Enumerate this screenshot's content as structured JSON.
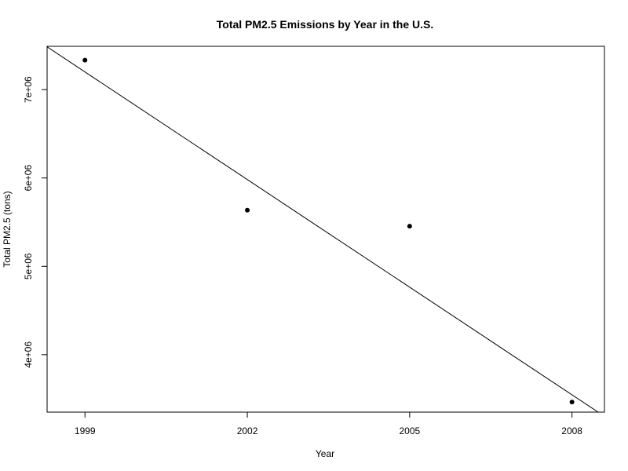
{
  "chart_data": {
    "type": "scatter",
    "title": "Total PM2.5 Emissions by Year in the U.S.",
    "xlabel": "Year",
    "ylabel": "Total PM2.5 (tons)",
    "x": [
      1999,
      2002,
      2005,
      2008
    ],
    "y": [
      7332967,
      5635780,
      5454703,
      3464206
    ],
    "xlim": [
      1998.3,
      2008.6
    ],
    "ylim": [
      3350000,
      7490000
    ],
    "x_ticks": [
      1999,
      2002,
      2005,
      2008
    ],
    "x_tick_labels": [
      "1999",
      "2002",
      "2005",
      "2008"
    ],
    "y_ticks": [
      4000000,
      5000000,
      6000000,
      7000000
    ],
    "y_tick_labels": [
      "4e+06",
      "5e+06",
      "6e+06",
      "7e+06"
    ],
    "regression_line": {
      "slope": -406000,
      "intercept": 818794000
    },
    "grid": false,
    "legend": "none"
  }
}
